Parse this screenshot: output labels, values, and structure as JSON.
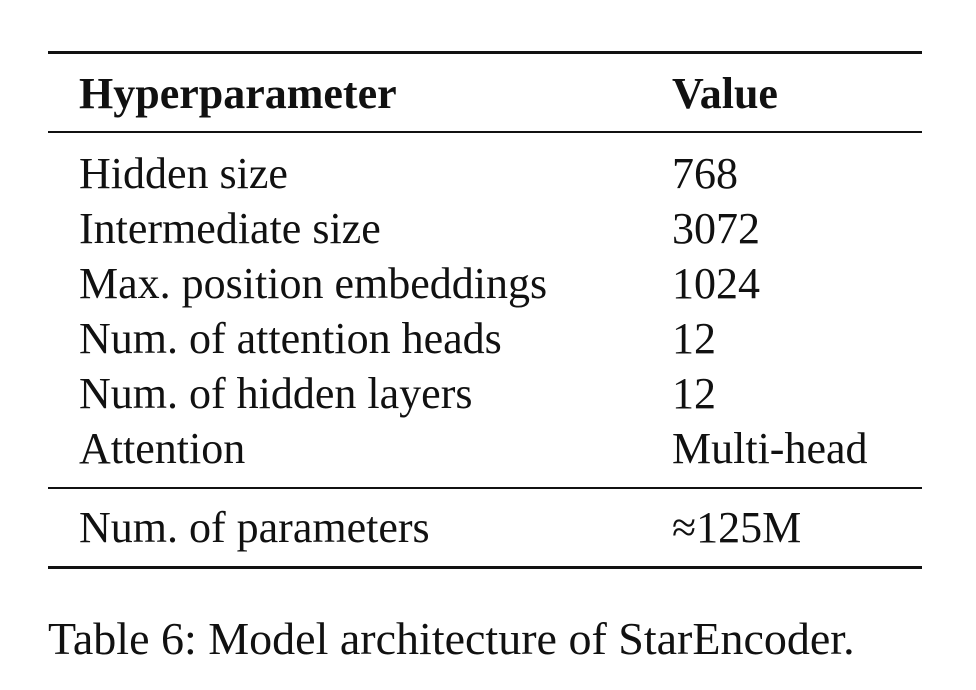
{
  "table": {
    "headers": [
      "Hyperparameter",
      "Value"
    ],
    "rows": [
      {
        "param": "Hidden size",
        "value": "768"
      },
      {
        "param": "Intermediate size",
        "value": "3072"
      },
      {
        "param": "Max. position embeddings",
        "value": "1024"
      },
      {
        "param": "Num. of attention heads",
        "value": "12"
      },
      {
        "param": "Num. of hidden layers",
        "value": "12"
      },
      {
        "param": "Attention",
        "value": "Multi-head"
      }
    ],
    "footer": {
      "param": "Num. of parameters",
      "value": "≈125M"
    }
  },
  "caption": "Table 6: Model architecture of StarEncoder."
}
